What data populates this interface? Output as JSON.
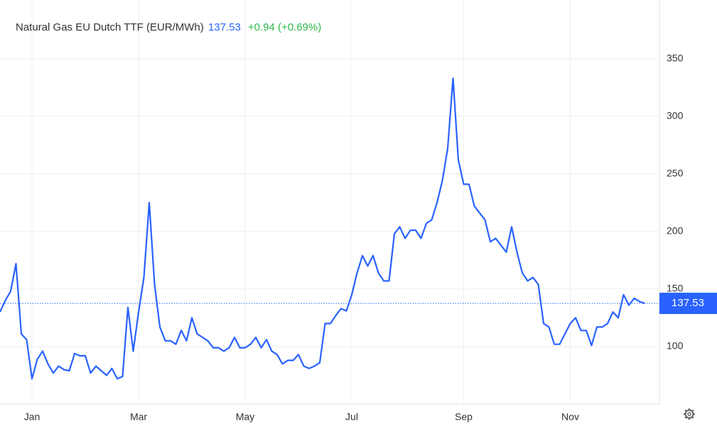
{
  "chart_data": {
    "type": "line",
    "title": "Natural Gas EU Dutch TTF (EUR/MWh)",
    "change": "+0.94 (+0.69%)",
    "color": "#2962ff",
    "categories": [
      null,
      null,
      null,
      null,
      null,
      null,
      "Jan",
      null,
      null,
      null,
      null,
      null,
      null,
      null,
      null,
      null,
      null,
      null,
      null,
      null,
      null,
      null,
      null,
      null,
      null,
      null,
      "Mar",
      null,
      null,
      null,
      null,
      null,
      null,
      null,
      null,
      null,
      null,
      null,
      null,
      null,
      null,
      null,
      null,
      null,
      null,
      null,
      "May",
      null,
      null,
      null,
      null,
      null,
      null,
      null,
      null,
      null,
      null,
      null,
      null,
      null,
      null,
      null,
      null,
      null,
      null,
      null,
      "Jul",
      null,
      null,
      null,
      null,
      null,
      null,
      null,
      null,
      null,
      null,
      null,
      null,
      null,
      null,
      null,
      null,
      null,
      null,
      null,
      null,
      "Sep",
      null,
      null,
      null,
      null,
      null,
      null,
      null,
      null,
      null,
      null,
      null,
      null,
      null,
      null,
      null,
      null,
      null,
      null,
      null,
      "Nov",
      null,
      null,
      null,
      null,
      null,
      null,
      null,
      null,
      null,
      null,
      null,
      null,
      null,
      null
    ],
    "values": [
      130,
      140,
      148,
      172,
      111,
      106,
      72,
      89,
      96,
      85,
      77,
      83,
      80,
      79,
      94,
      92,
      92,
      77,
      83,
      79,
      75,
      81,
      72,
      74,
      134,
      96,
      130,
      160,
      225,
      154,
      117,
      105,
      105,
      102,
      114,
      105,
      125,
      111,
      108,
      105,
      99,
      99,
      96,
      99,
      108,
      99,
      99,
      102,
      108,
      99,
      106,
      96,
      93,
      85,
      88,
      88,
      93,
      83,
      81,
      83,
      86,
      120,
      120,
      127,
      133,
      131,
      145,
      164,
      179,
      170,
      179,
      164,
      157,
      157,
      198,
      204,
      194,
      201,
      201,
      194,
      207,
      210,
      225,
      244,
      272,
      333,
      262,
      241,
      241,
      222,
      216,
      210,
      191,
      194,
      188,
      182,
      204,
      182,
      164,
      157,
      160,
      154,
      120,
      117,
      102,
      102,
      111,
      120,
      125,
      114,
      114,
      101,
      117,
      117,
      120,
      130,
      125,
      145,
      136,
      142,
      139,
      137.53
    ],
    "ylim": [
      50,
      401
    ],
    "yticks": [
      100,
      150,
      200,
      250,
      300,
      350
    ],
    "grid": true
  }
}
